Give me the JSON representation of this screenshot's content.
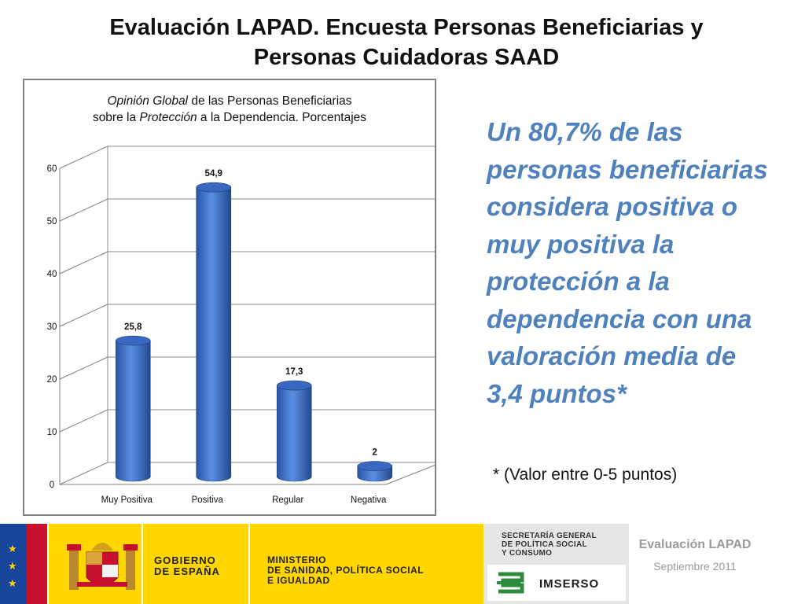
{
  "slide": {
    "title_line1": "Evaluación LAPAD.  Encuesta Personas Beneficiarias y",
    "title_line2": "Personas  Cuidadoras SAAD"
  },
  "chart_title": {
    "line1_italic": "Opinión Global",
    "line1_rest": " de las Personas Beneficiarias",
    "line2_pre": "sobre la ",
    "line2_italic": "Protección",
    "line2_rest": " a la Dependencia.  Porcentajes"
  },
  "chart_data": {
    "type": "bar",
    "title": "Opinión Global de las Personas Beneficiarias sobre la Protección a la Dependencia. Porcentajes",
    "categories": [
      "Muy Positiva",
      "Positiva",
      "Regular",
      "Negativa"
    ],
    "values": [
      25.8,
      54.9,
      17.3,
      2
    ],
    "value_labels": [
      "25,8",
      "54,9",
      "17,3",
      "2"
    ],
    "yticks": [
      0,
      10,
      20,
      30,
      40,
      50,
      60
    ],
    "ylim": [
      0,
      60
    ],
    "xlabel": "",
    "ylabel": "",
    "grid": true,
    "bar_color": "#4472c4"
  },
  "headline": "Un  80,7%  de las personas beneficiarias considera positiva o muy positiva la protección a la dependencia con una valoración media de 3,4 puntos*",
  "footnote": "* (Valor entre 0-5 puntos)",
  "footer": {
    "gov_line1": "GOBIERNO",
    "gov_line2": "DE ESPAÑA",
    "ministry_line1": "MINISTERIO",
    "ministry_line2": "DE SANIDAD, POLÍTICA SOCIAL",
    "ministry_line3": "E IGUALDAD",
    "sec_line1": "SECRETARÍA GENERAL",
    "sec_line2": "DE POLÍTICA SOCIAL",
    "sec_line3": "Y CONSUMO",
    "imserso": "IMSERSO",
    "eval_label": "Evaluación LAPAD",
    "date_label": "Septiembre 2011"
  },
  "colors": {
    "headline": "#4f81bd",
    "bar": "#4472c4",
    "flag_blue": "#17459a",
    "flag_red": "#c8102e",
    "band_yellow": "#ffd600"
  }
}
